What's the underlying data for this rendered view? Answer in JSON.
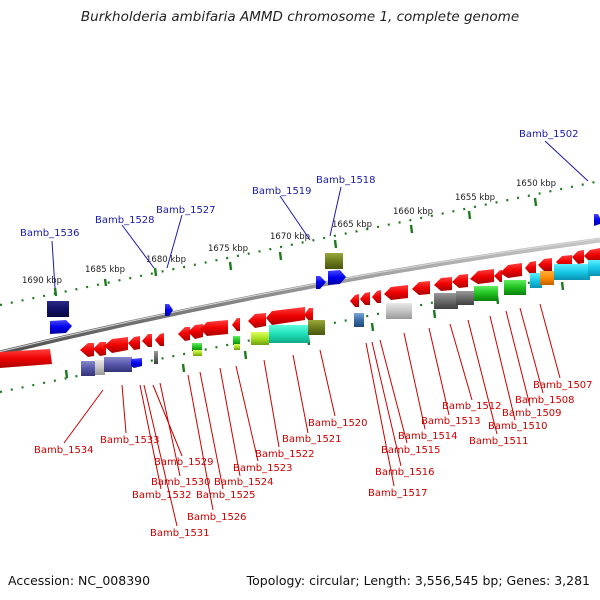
{
  "title": "Burkholderia ambifaria AMMD chromosome 1, complete genome",
  "footer": {
    "accession": "Accession: NC_008390",
    "topology": "Topology: circular; Length: 3,556,545 bp; Genes: 3,281"
  },
  "colors": {
    "forward_label": "#1a1aa8",
    "reverse_label": "#cc0000",
    "backbone": "#8c8c8c",
    "ruler": "#1e7a1e"
  },
  "ruler_labels": [
    "1690 kbp",
    "1685 kbp",
    "1680 kbp",
    "1675 kbp",
    "1670 kbp",
    "1665 kbp",
    "1660 kbp",
    "1655 kbp",
    "1650 kbp"
  ],
  "forward_labels": [
    "Bamb_1536",
    "Bamb_1528",
    "Bamb_1527",
    "Bamb_1519",
    "Bamb_1518",
    "Bamb_1502"
  ],
  "reverse_labels": [
    "Bamb_1534",
    "Bamb_1533",
    "Bamb_1529",
    "Bamb_1530",
    "Bamb_1532",
    "Bamb_1531",
    "Bamb_1526",
    "Bamb_1525",
    "Bamb_1524",
    "Bamb_1523",
    "Bamb_1522",
    "Bamb_1521",
    "Bamb_1520",
    "Bamb_1517",
    "Bamb_1516",
    "Bamb_1515",
    "Bamb_1514",
    "Bamb_1513",
    "Bamb_1512",
    "Bamb_1511",
    "Bamb_1510",
    "Bamb_1509",
    "Bamb_1508",
    "Bamb_1507"
  ]
}
